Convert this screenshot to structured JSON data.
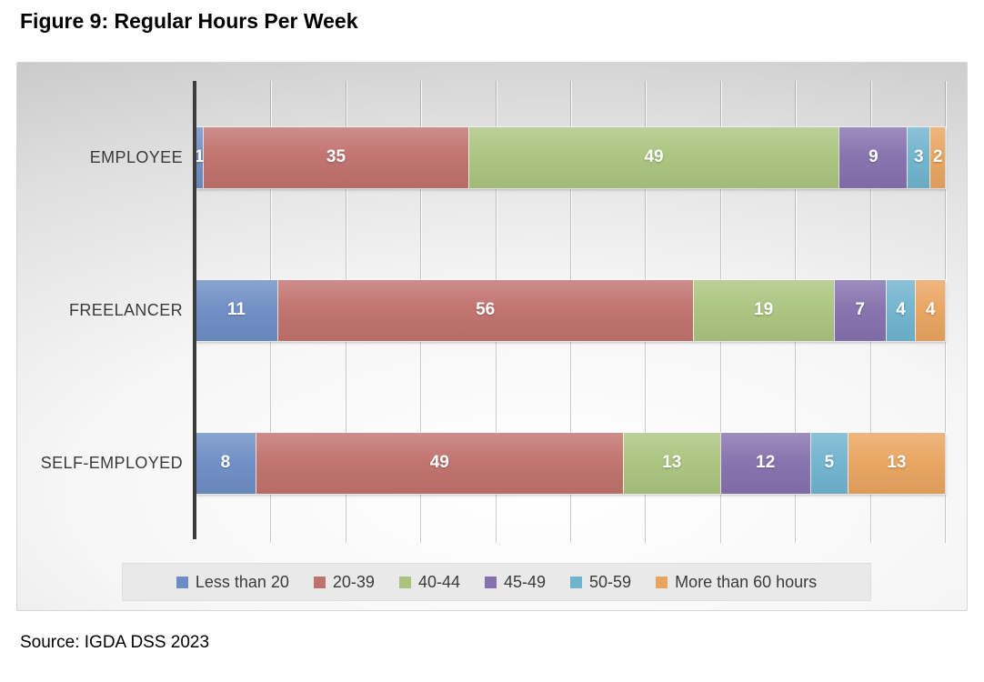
{
  "title": "Figure 9: Regular Hours Per Week",
  "source_note": "Source: IGDA DSS 2023",
  "chart_data": {
    "type": "bar",
    "variant": "horizontal-stacked",
    "title": "Figure 9: Regular Hours Per Week",
    "categories": [
      "EMPLOYEE",
      "FREELANCER",
      "SELF-EMPLOYED"
    ],
    "series": [
      {
        "name": "Less than 20",
        "color": "#6d8ec4",
        "values": [
          1,
          11,
          8
        ]
      },
      {
        "name": "20-39",
        "color": "#c0716d",
        "values": [
          35,
          56,
          49
        ]
      },
      {
        "name": "40-44",
        "color": "#aac47e",
        "values": [
          49,
          19,
          13
        ]
      },
      {
        "name": "45-49",
        "color": "#8571ad",
        "values": [
          9,
          7,
          12
        ]
      },
      {
        "name": "50-59",
        "color": "#70b3ce",
        "values": [
          3,
          4,
          5
        ]
      },
      {
        "name": "More than 60 hours",
        "color": "#e9a45f",
        "values": [
          2,
          4,
          13
        ]
      }
    ],
    "xlim": [
      0,
      100
    ],
    "gridline_interval": 10,
    "grid": true,
    "legend_position": "bottom",
    "axis_color": "#3c3c3c",
    "value_label_color": "#ffffff"
  }
}
